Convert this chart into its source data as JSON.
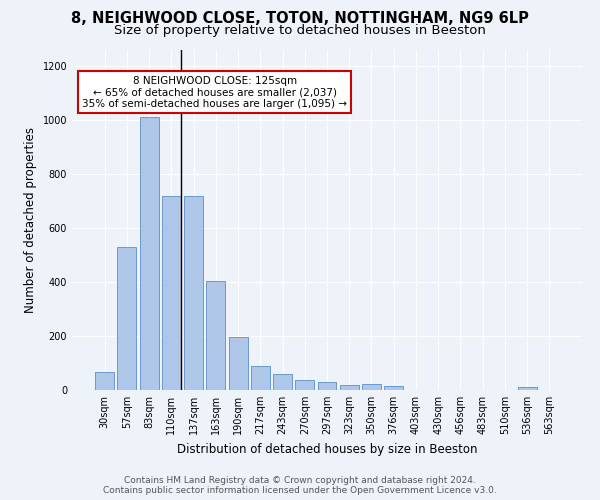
{
  "title": "8, NEIGHWOOD CLOSE, TOTON, NOTTINGHAM, NG9 6LP",
  "subtitle": "Size of property relative to detached houses in Beeston",
  "xlabel": "Distribution of detached houses by size in Beeston",
  "ylabel": "Number of detached properties",
  "footnote1": "Contains HM Land Registry data © Crown copyright and database right 2024.",
  "footnote2": "Contains public sector information licensed under the Open Government Licence v3.0.",
  "categories": [
    "30sqm",
    "57sqm",
    "83sqm",
    "110sqm",
    "137sqm",
    "163sqm",
    "190sqm",
    "217sqm",
    "243sqm",
    "270sqm",
    "297sqm",
    "323sqm",
    "350sqm",
    "376sqm",
    "403sqm",
    "430sqm",
    "456sqm",
    "483sqm",
    "510sqm",
    "536sqm",
    "563sqm"
  ],
  "values": [
    68,
    530,
    1010,
    720,
    720,
    405,
    197,
    90,
    58,
    38,
    30,
    17,
    22,
    15,
    1,
    0,
    0,
    0,
    0,
    12,
    0
  ],
  "bar_color": "#aec6e8",
  "bar_edge_color": "#5b8fc9",
  "highlight_bar_index": 3,
  "annotation_text": "8 NEIGHWOOD CLOSE: 125sqm\n← 65% of detached houses are smaller (2,037)\n35% of semi-detached houses are larger (1,095) →",
  "annotation_box_color": "#ffffff",
  "annotation_box_edge_color": "#cc0000",
  "ylim": [
    0,
    1260
  ],
  "yticks": [
    0,
    200,
    400,
    600,
    800,
    1000,
    1200
  ],
  "bg_color": "#eef2f9",
  "plot_bg_color": "#eef2f9",
  "title_fontsize": 10.5,
  "subtitle_fontsize": 9.5,
  "axis_label_fontsize": 8.5,
  "tick_fontsize": 7,
  "annot_fontsize": 7.5,
  "footnote_fontsize": 6.5
}
